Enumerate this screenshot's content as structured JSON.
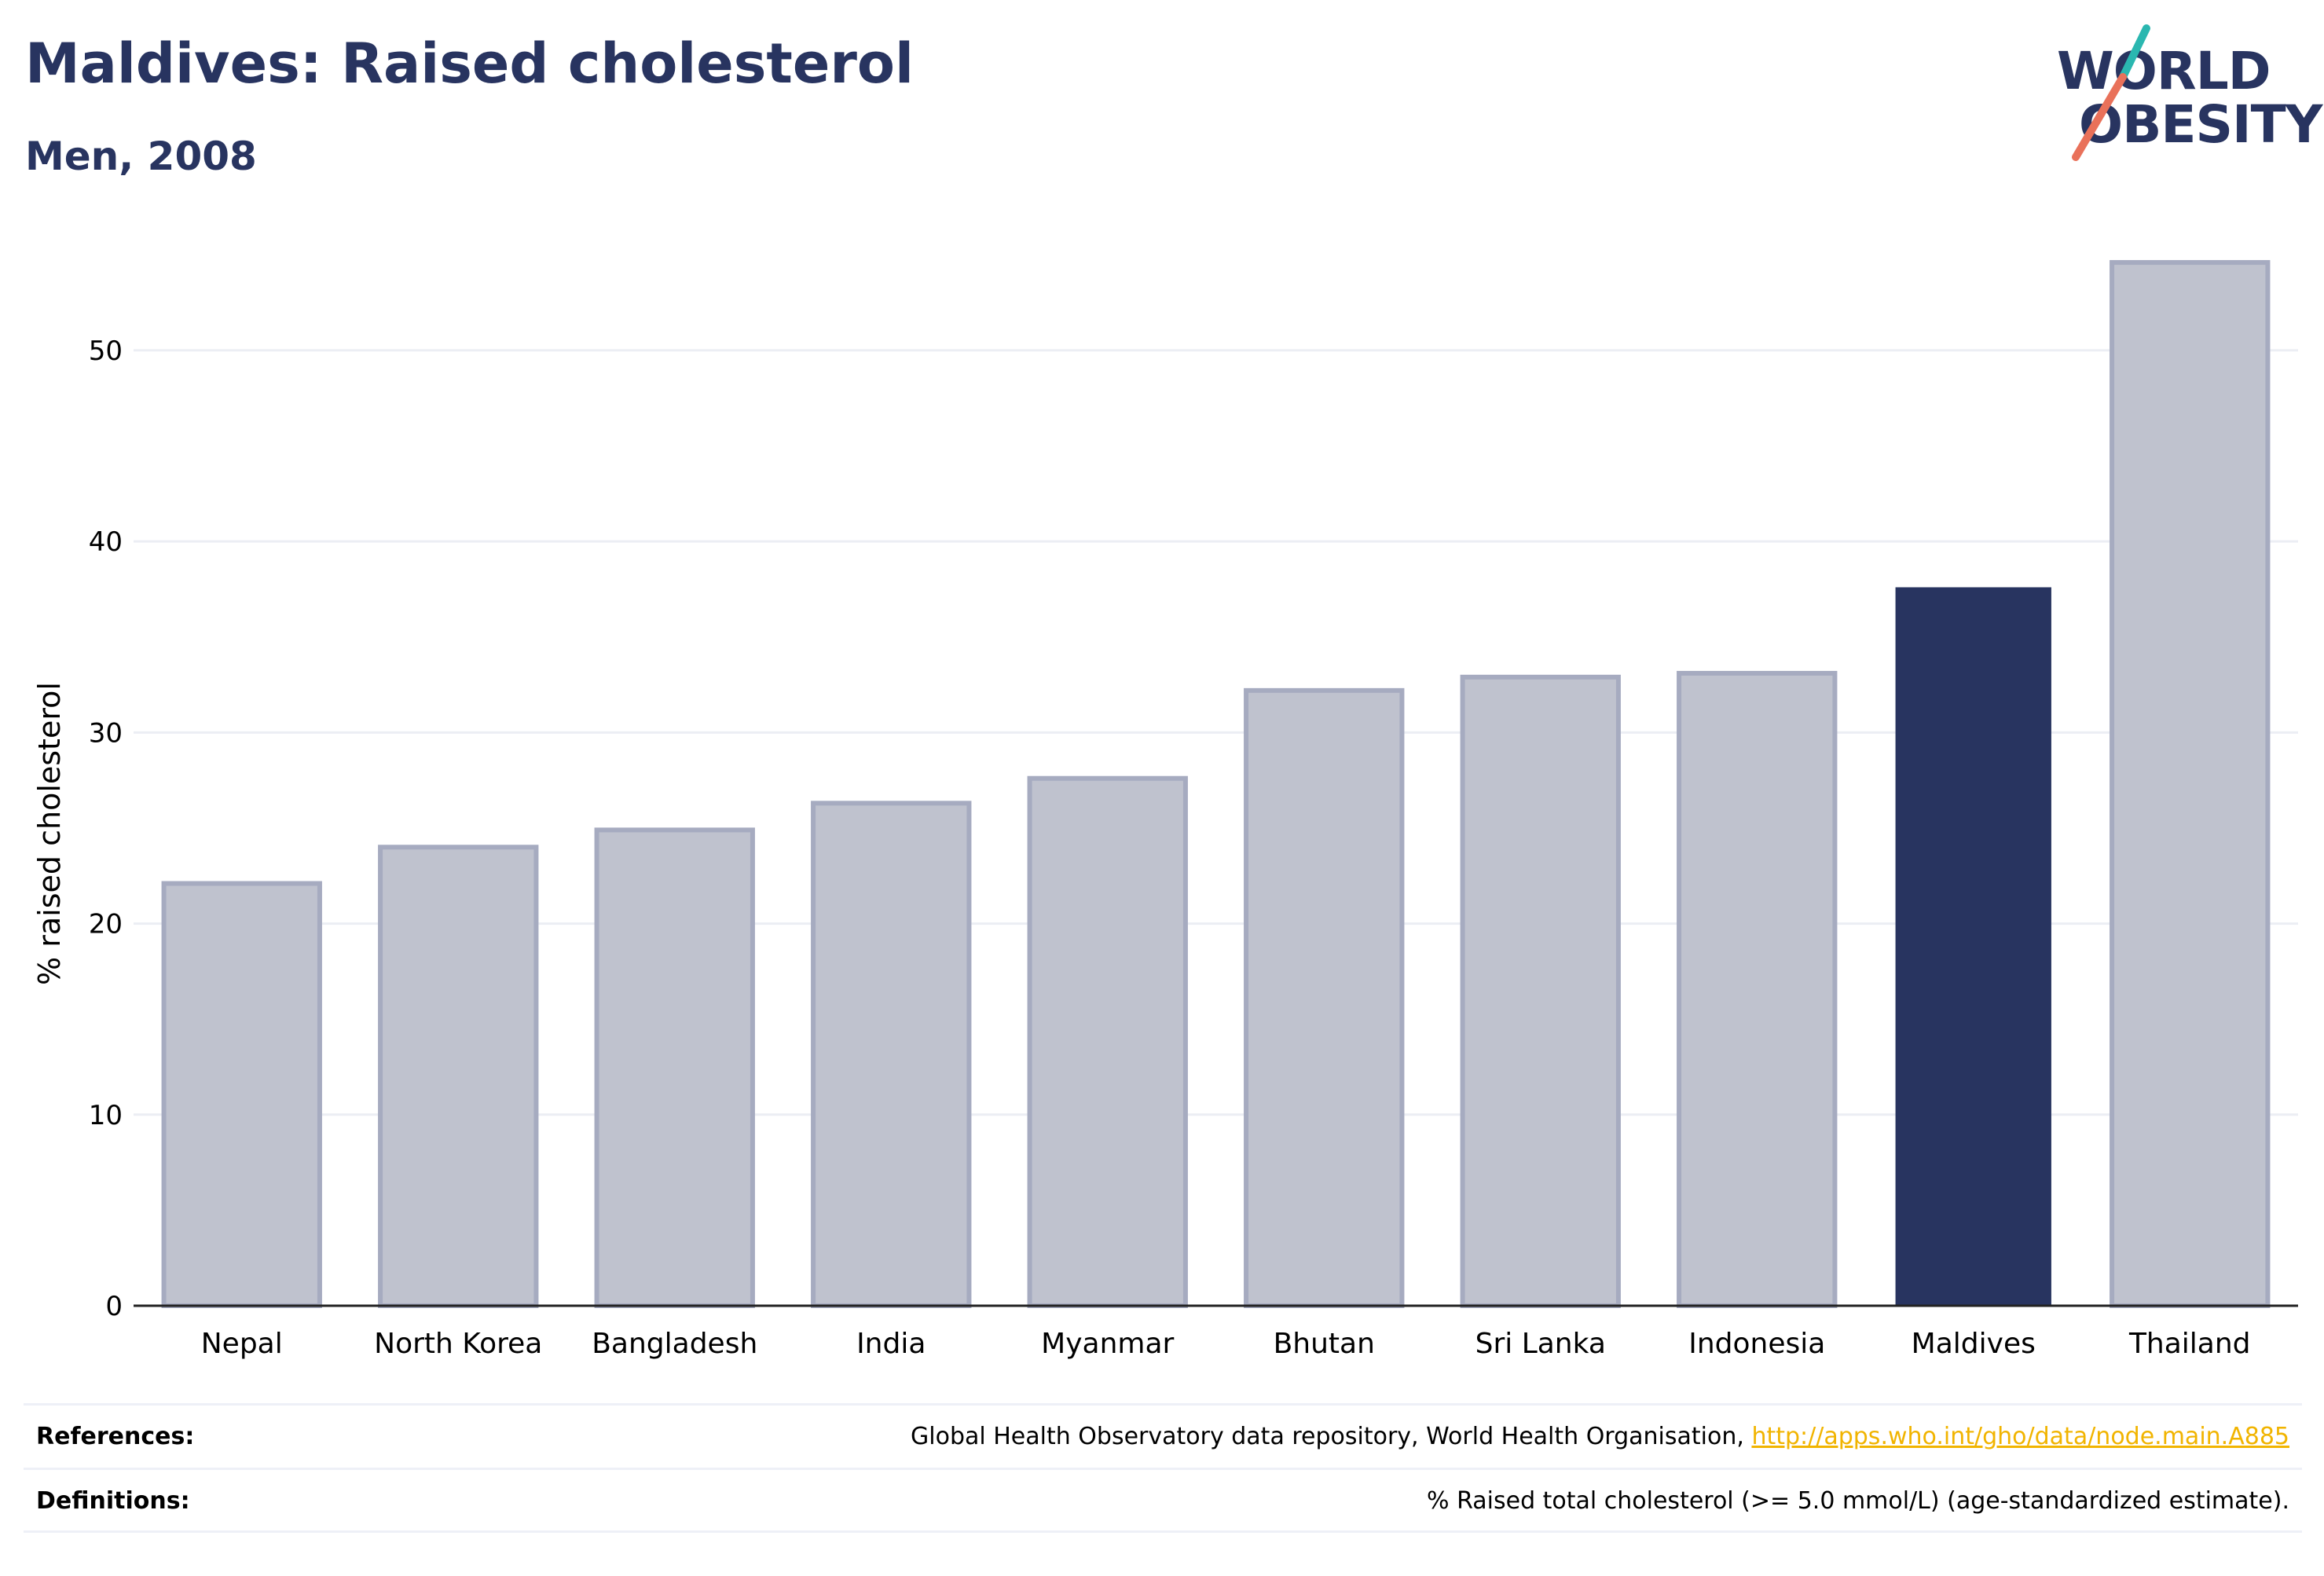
{
  "header": {
    "title": "Maldives: Raised cholesterol",
    "subtitle": "Men, 2008"
  },
  "logo": {
    "line1": "WORLD",
    "line2": "OBESITY",
    "colors": {
      "text": "#283460",
      "slash_top": "#2ab7b0",
      "slash_bottom": "#e9715a"
    }
  },
  "chart_data": {
    "type": "bar",
    "categories": [
      "Nepal",
      "North Korea",
      "Bangladesh",
      "India",
      "Myanmar",
      "Bhutan",
      "Sri Lanka",
      "Indonesia",
      "Maldives",
      "Thailand"
    ],
    "values": [
      22.1,
      24.0,
      24.9,
      26.3,
      27.6,
      32.2,
      32.9,
      33.1,
      37.6,
      54.6
    ],
    "highlight": "Maldives",
    "title": "",
    "xlabel": "",
    "ylabel": "% raised cholesterol",
    "ylim": [
      0,
      56
    ],
    "yticks": [
      0,
      10,
      20,
      30,
      40,
      50
    ],
    "grid": true,
    "colors": {
      "bar": "#283460",
      "bar_muted_fill": "#bfc2ce",
      "bar_muted_stroke": "#a6abc0",
      "highlight": "#283460",
      "grid": "#eceef4",
      "axis": "#222222"
    }
  },
  "footer": {
    "references_label": "References:",
    "references_text": "Global Health Observatory data repository, World Health Organisation, ",
    "references_link": "http://apps.who.int/gho/data/node.main.A885",
    "definitions_label": "Definitions:",
    "definitions_text": "% Raised total cholesterol (>= 5.0 mmol/L) (age-standardized estimate)."
  }
}
